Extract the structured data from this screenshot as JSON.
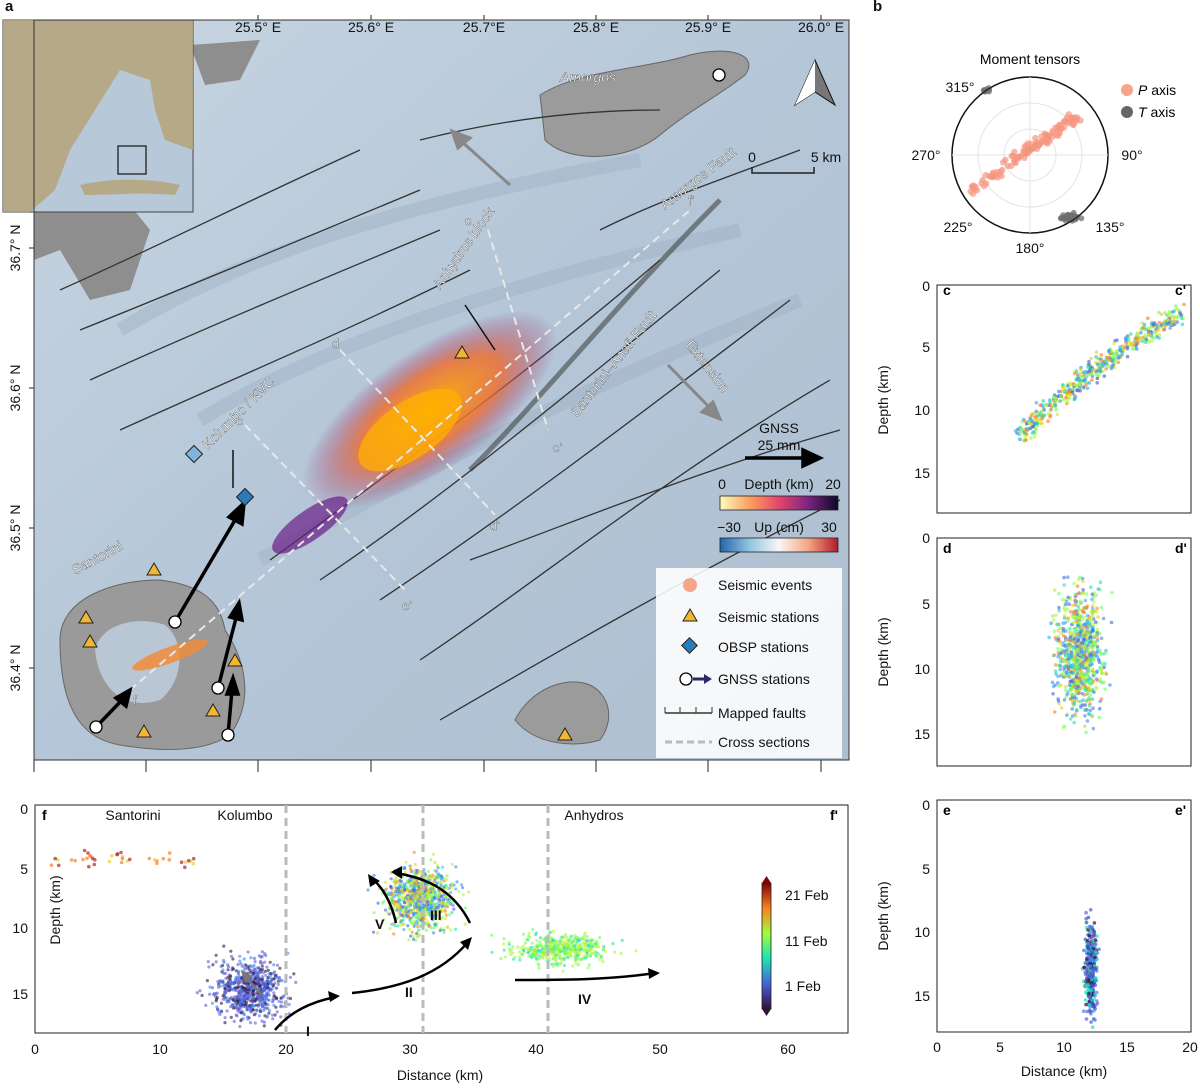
{
  "panel_labels": {
    "a": "a",
    "b": "b",
    "c": "c",
    "c_prime": "c'",
    "d": "d",
    "d_prime": "d'",
    "e": "e",
    "e_prime": "e'",
    "f": "f",
    "f_prime": "f'"
  },
  "map": {
    "lon_ticks": [
      "25.5° E",
      "25.6° E",
      "25.7°E",
      "25.8° E",
      "25.9° E",
      "26.0° E"
    ],
    "lat_ticks": [
      "36.7° N",
      "36.6° N",
      "36.5° N",
      "36.4° N"
    ],
    "place_names": {
      "amorgos": "Amorgos",
      "amorgos_fault": "Amorgos Fault",
      "anhydros_block": "Anhydros block",
      "santorini_anafi_fault": "Santorini–Anafi Fault",
      "extension": "Extension",
      "kolumbo_kvc": "Kolumbo / KVC",
      "santorini": "Santorini"
    },
    "section_labels": [
      "c",
      "c'",
      "d",
      "d'",
      "e",
      "e'",
      "f",
      "f'"
    ],
    "scale_bar": {
      "start": "0",
      "end": "5 km"
    },
    "gnss_scale": {
      "title": "GNSS",
      "value": "25 mm"
    },
    "depth_colorbar": {
      "min": "0",
      "title": "Depth (km)",
      "max": "20"
    },
    "up_colorbar": {
      "min": "−30",
      "title": "Up (cm)",
      "max": "30"
    },
    "legend": [
      "Seismic events",
      "Seismic stations",
      "OBSP stations",
      "GNSS stations",
      "Mapped faults",
      "Cross sections"
    ],
    "colors": {
      "sea": "#b7c8d8",
      "land": "#9e9e9e",
      "event_orange": "#f08c3a",
      "station_yellow": "#f2b632",
      "obsp_blue": "#2b7bb9"
    }
  },
  "moment_tensors": {
    "title": "Moment tensors",
    "angles": [
      "315°",
      "270°",
      "225°",
      "180°",
      "135°",
      "90°"
    ],
    "legend": [
      {
        "italic": "P",
        "rest": " axis",
        "color": "#f26b4a"
      },
      {
        "italic": "T",
        "rest": " axis",
        "color": "#555555"
      }
    ]
  },
  "sections": {
    "depth_label": "Depth (km)",
    "distance_label": "Distance (km)",
    "c": {
      "yticks": [
        "0",
        "5",
        "10",
        "15"
      ]
    },
    "d": {
      "yticks": [
        "0",
        "5",
        "10",
        "15"
      ]
    },
    "e": {
      "yticks": [
        "0",
        "5",
        "10",
        "15"
      ],
      "xticks": [
        "0",
        "5",
        "10",
        "15",
        "20"
      ]
    },
    "f": {
      "yticks": [
        "0",
        "5",
        "10",
        "15"
      ],
      "xticks": [
        "0",
        "10",
        "20",
        "30",
        "40",
        "50",
        "60"
      ],
      "places": [
        "Santorini",
        "Kolumbo",
        "Anhydros"
      ],
      "roman": [
        "I",
        "II",
        "III",
        "IV",
        "V"
      ],
      "colorbar": [
        "21 Feb",
        "11 Feb",
        "1 Feb"
      ]
    }
  }
}
